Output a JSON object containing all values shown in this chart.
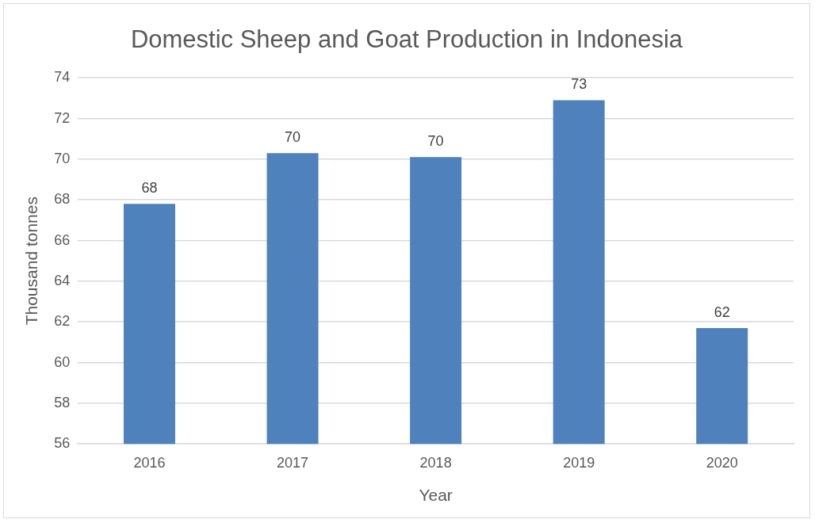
{
  "chart_data": {
    "type": "bar",
    "title": "Domestic Sheep and Goat Production in Indonesia",
    "xlabel": "Year",
    "ylabel": "Thousand tonnes",
    "categories": [
      "2016",
      "2017",
      "2018",
      "2019",
      "2020"
    ],
    "values": [
      67.8,
      70.3,
      70.1,
      72.9,
      61.7
    ],
    "value_labels": [
      "68",
      "70",
      "70",
      "73",
      "62"
    ],
    "color": "#4f81bd",
    "ylim": [
      56,
      74
    ],
    "yticks": [
      56,
      58,
      60,
      62,
      64,
      66,
      68,
      70,
      72,
      74
    ],
    "grid": "y",
    "legend": false
  }
}
